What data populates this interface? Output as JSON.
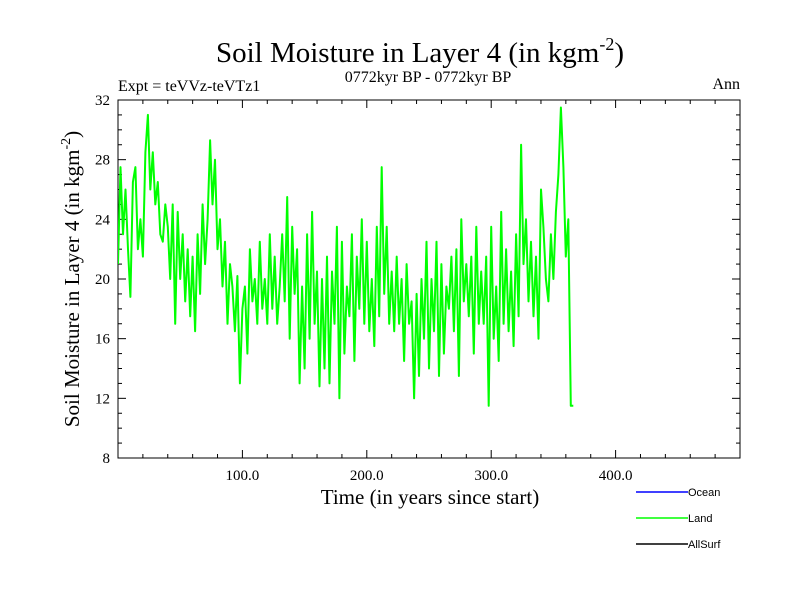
{
  "chart_data": {
    "type": "line",
    "title": "Soil Moisture in Layer 4 (in kgm",
    "title_sup": "-2",
    "title_close": ")",
    "subtitle": "0772kyr BP - 0772kyr BP",
    "expt_label": "Expt = teVVz-teVTz1",
    "period_label": "Ann",
    "xlabel": "Time (in years since start)",
    "ylabel": "Soil Moisture in Layer 4 (in kgm",
    "ylabel_sup": "-2",
    "ylabel_close": ")",
    "xlim": [
      0,
      500
    ],
    "ylim": [
      8,
      32
    ],
    "x_ticks": [
      100,
      200,
      300,
      400
    ],
    "x_tick_labels": [
      "100.0",
      "200.0",
      "300.0",
      "400.0"
    ],
    "y_ticks": [
      8,
      12,
      16,
      20,
      24,
      28,
      32
    ],
    "y_tick_labels": [
      "8",
      "12",
      "16",
      "20",
      "24",
      "28",
      "32"
    ],
    "legend": [
      {
        "name": "Ocean",
        "color": "#0000ff"
      },
      {
        "name": "Land",
        "color": "#00ff00"
      },
      {
        "name": "AllSurf",
        "color": "#000000"
      }
    ],
    "legend_position": "bottom-right",
    "series": [
      {
        "name": "Land",
        "color": "#00ff00",
        "x_start": 0,
        "x_step": 2,
        "values": [
          21,
          27.5,
          23,
          26,
          22,
          18.8,
          26.5,
          27.5,
          22,
          24,
          21.5,
          28.5,
          31,
          26,
          28.5,
          25,
          26.5,
          23,
          22.5,
          25,
          23.5,
          20,
          25,
          17,
          24.5,
          20,
          23,
          18.5,
          22,
          17.5,
          21.5,
          16.5,
          23,
          19,
          25,
          21,
          24,
          29.3,
          25,
          28,
          22,
          24,
          19.5,
          22.5,
          17,
          21,
          19.5,
          16.5,
          20.2,
          13,
          18,
          19.5,
          15,
          22,
          18.5,
          20,
          17,
          22.5,
          18,
          20,
          17,
          23,
          18,
          21.5,
          17,
          19.5,
          23,
          18.5,
          25.5,
          16,
          23.5,
          19,
          22,
          13,
          19.5,
          14,
          23,
          16,
          24.5,
          17,
          20.5,
          12.8,
          20,
          14,
          21.5,
          13,
          20.5,
          17,
          23.5,
          12,
          22.5,
          15,
          19.5,
          17.5,
          23,
          14.5,
          21.5,
          18,
          24,
          17,
          22.5,
          16.5,
          20,
          15.5,
          23.5,
          17.5,
          27.5,
          19,
          23.5,
          17,
          20.5,
          16.5,
          21.5,
          17,
          20,
          14.5,
          21,
          17,
          18.5,
          12,
          19,
          13.5,
          20,
          16,
          22.5,
          14,
          20,
          16.5,
          22.5,
          13.5,
          21,
          15,
          19.5,
          18,
          21.5,
          16.5,
          22,
          13.5,
          24,
          18.5,
          21,
          17.5,
          21.5,
          15,
          23.5,
          17,
          20.5,
          17,
          21.5,
          11.5,
          23.5,
          16,
          19.5,
          14.5,
          24.5,
          17,
          22,
          16.5,
          20.5,
          15.5,
          23,
          17.5,
          29,
          21,
          24,
          18.5,
          22.5,
          17.5,
          21.5,
          16,
          26,
          23.5,
          20,
          18.5,
          23,
          20,
          24.5,
          27,
          31.5,
          27.5,
          21.5,
          24,
          11.5,
          11.5
        ]
      }
    ]
  }
}
